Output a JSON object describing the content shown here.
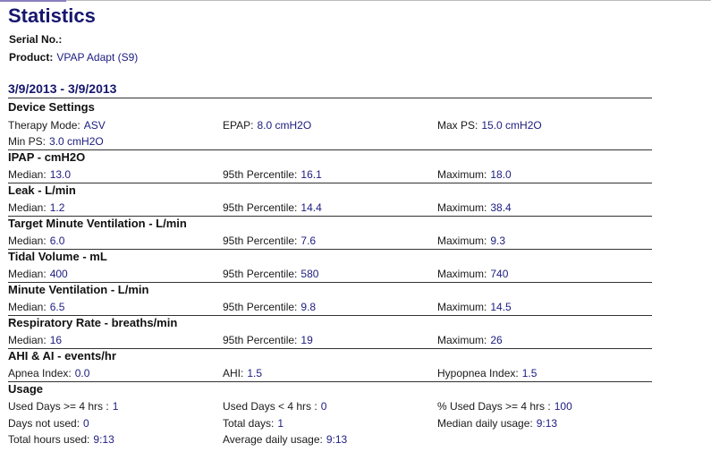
{
  "header": {
    "title": "Statistics",
    "serial_label": "Serial No.:",
    "product_label": "Product:",
    "product_value": "VPAP Adapt (S9)"
  },
  "date_range": "3/9/2013 - 3/9/2013",
  "sections": [
    {
      "title": "Device Settings",
      "rows": [
        [
          {
            "label": "Therapy Mode:",
            "value": "ASV"
          },
          {
            "label": "EPAP:",
            "value": "8.0 cmH2O"
          },
          {
            "label": "Max PS:",
            "value": "15.0 cmH2O"
          }
        ],
        [
          {
            "label": "Min PS:",
            "value": "3.0 cmH2O"
          }
        ]
      ]
    },
    {
      "title": "IPAP - cmH2O",
      "rows": [
        [
          {
            "label": "Median:",
            "value": "13.0"
          },
          {
            "label": "95th Percentile:",
            "value": "16.1"
          },
          {
            "label": "Maximum:",
            "value": "18.0"
          }
        ]
      ]
    },
    {
      "title": "Leak - L/min",
      "rows": [
        [
          {
            "label": "Median:",
            "value": "1.2"
          },
          {
            "label": "95th Percentile:",
            "value": "14.4"
          },
          {
            "label": "Maximum:",
            "value": "38.4"
          }
        ]
      ]
    },
    {
      "title": "Target Minute Ventilation - L/min",
      "rows": [
        [
          {
            "label": "Median:",
            "value": "6.0"
          },
          {
            "label": "95th Percentile:",
            "value": "7.6"
          },
          {
            "label": "Maximum:",
            "value": "9.3"
          }
        ]
      ]
    },
    {
      "title": "Tidal Volume - mL",
      "rows": [
        [
          {
            "label": "Median:",
            "value": "400"
          },
          {
            "label": "95th Percentile:",
            "value": "580"
          },
          {
            "label": "Maximum:",
            "value": "740"
          }
        ]
      ]
    },
    {
      "title": "Minute Ventilation - L/min",
      "rows": [
        [
          {
            "label": "Median:",
            "value": "6.5"
          },
          {
            "label": "95th Percentile:",
            "value": "9.8"
          },
          {
            "label": "Maximum:",
            "value": "14.5"
          }
        ]
      ]
    },
    {
      "title": "Respiratory Rate - breaths/min",
      "rows": [
        [
          {
            "label": "Median:",
            "value": "16"
          },
          {
            "label": "95th Percentile:",
            "value": "19"
          },
          {
            "label": "Maximum:",
            "value": "26"
          }
        ]
      ]
    },
    {
      "title": "AHI & AI - events/hr",
      "rows": [
        [
          {
            "label": "Apnea Index:",
            "value": "0.0"
          },
          {
            "label": "AHI:",
            "value": "1.5"
          },
          {
            "label": "Hypopnea Index:",
            "value": "1.5"
          }
        ]
      ]
    },
    {
      "title": "Usage",
      "rows": [
        [
          {
            "label": "Used Days >= 4 hrs :",
            "value": "1"
          },
          {
            "label": "Used Days < 4 hrs :",
            "value": "0"
          },
          {
            "label": "% Used Days >= 4 hrs :",
            "value": "100"
          }
        ],
        [
          {
            "label": "Days not used:",
            "value": "0"
          },
          {
            "label": "Total days:",
            "value": "1"
          },
          {
            "label": "Median daily usage:",
            "value": "9:13"
          }
        ],
        [
          {
            "label": "Total hours used:",
            "value": "9:13"
          },
          {
            "label": "Average daily usage:",
            "value": "9:13"
          }
        ]
      ]
    }
  ]
}
